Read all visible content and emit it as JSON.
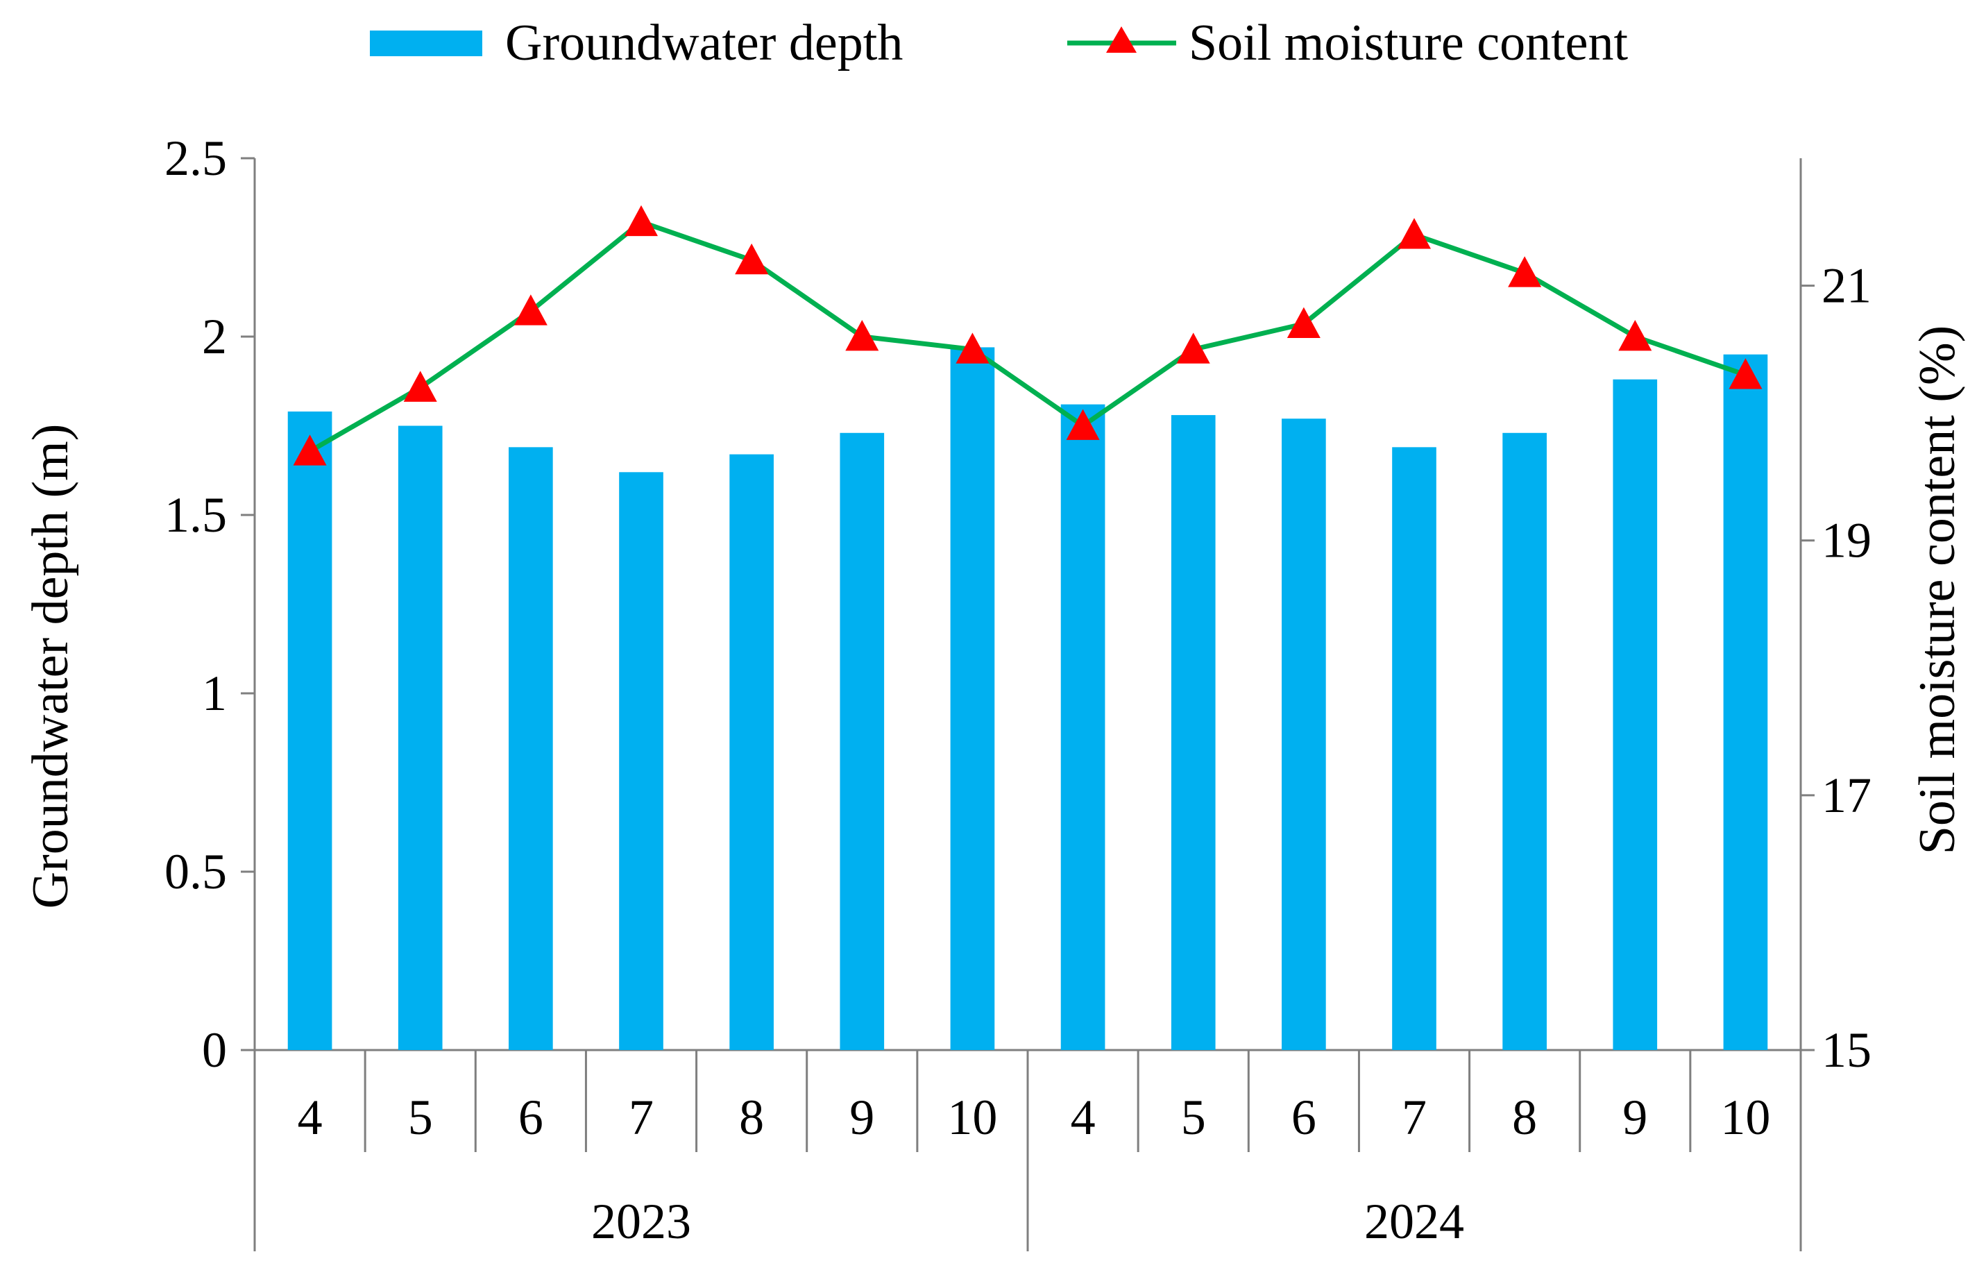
{
  "chart_data": {
    "type": "bar+line",
    "title": "",
    "groups": [
      {
        "label": "2023",
        "months": [
          "4",
          "5",
          "6",
          "7",
          "8",
          "9",
          "10"
        ]
      },
      {
        "label": "2024",
        "months": [
          "4",
          "5",
          "6",
          "7",
          "8",
          "9",
          "10"
        ]
      }
    ],
    "series": [
      {
        "name": "Groundwater depth",
        "type": "bar",
        "axis": "left",
        "color": "#00B0F0",
        "values": [
          1.79,
          1.75,
          1.69,
          1.62,
          1.67,
          1.73,
          1.97,
          1.81,
          1.78,
          1.77,
          1.69,
          1.73,
          1.88,
          1.95
        ]
      },
      {
        "name": "Soil moisture content",
        "type": "line",
        "axis": "right",
        "line_color": "#00B050",
        "marker": "triangle",
        "marker_color": "#FF0000",
        "values": [
          19.7,
          20.2,
          20.8,
          21.5,
          21.2,
          20.6,
          20.5,
          19.9,
          20.5,
          20.7,
          21.4,
          21.1,
          20.6,
          20.3
        ]
      }
    ],
    "left_axis": {
      "label": "Groundwater depth (m)",
      "min": 0,
      "max": 2.5,
      "ticks": [
        "0",
        "0.5",
        "1",
        "1.5",
        "2",
        "2.5"
      ]
    },
    "right_axis": {
      "label": "Soil moisture content (%)",
      "min": 15,
      "max": 22,
      "ticks": [
        "15",
        "17",
        "19",
        "21"
      ]
    },
    "legend": {
      "position": "top",
      "items": [
        "Groundwater depth",
        "Soil moisture content"
      ]
    },
    "gridlines": false
  }
}
